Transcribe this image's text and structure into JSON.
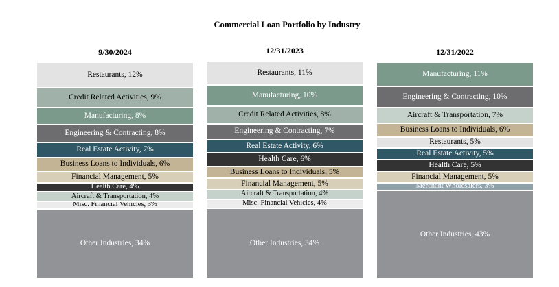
{
  "chart_data": {
    "type": "stacked-bar-100",
    "title": "Commercial Loan Portfolio by Industry",
    "bars": [
      {
        "label": "9/30/2024",
        "segments": [
          {
            "text": "Restaurants, 12%",
            "value": 12,
            "color": "#e3e3e3"
          },
          {
            "text": "Credit Related Activities, 9%",
            "value": 9,
            "color": "#9fb1a9"
          },
          {
            "text": "Manufacturing, 8%",
            "value": 8,
            "color": "#7b9a8b"
          },
          {
            "text": "Engineering & Contracting, 8%",
            "value": 8,
            "color": "#6d6d70"
          },
          {
            "text": "Real Estate Activity, 7%",
            "value": 7,
            "color": "#2f5766"
          },
          {
            "text": "Business Loans to Individuals, 6%",
            "value": 6,
            "color": "#c3b495"
          },
          {
            "text": "Financial Management, 5%",
            "value": 5,
            "color": "#d8cfb8"
          },
          {
            "text": "Health Care, 4%",
            "value": 4,
            "color": "#333333"
          },
          {
            "text": "Aircraft & Transportation, 4%",
            "value": 4,
            "color": "#c5d1cb"
          },
          {
            "text": "Misc. Financial Vehicles, 3%",
            "value": 3,
            "color": "#ececec"
          },
          {
            "text": "Other Industries, 34%",
            "value": 34,
            "color": "#929396"
          }
        ]
      },
      {
        "label": "12/31/2023",
        "segments": [
          {
            "text": "Restaurants, 11%",
            "value": 11,
            "color": "#e3e3e3"
          },
          {
            "text": "Manufacturing, 10%",
            "value": 10,
            "color": "#7b9a8b"
          },
          {
            "text": "Credit Related Activities, 8%",
            "value": 8,
            "color": "#9fb1a9"
          },
          {
            "text": "Engineering & Contracting, 7%",
            "value": 7,
            "color": "#6d6d70"
          },
          {
            "text": "Real Estate Activity, 6%",
            "value": 6,
            "color": "#2f5766"
          },
          {
            "text": "Health Care, 6%",
            "value": 6,
            "color": "#333333"
          },
          {
            "text": "Business Loans to Individuals, 5%",
            "value": 5,
            "color": "#c3b495"
          },
          {
            "text": "Financial Management, 5%",
            "value": 5,
            "color": "#d8cfb8"
          },
          {
            "text": "Aircraft & Transportation, 4%",
            "value": 4,
            "color": "#c5d1cb"
          },
          {
            "text": "Misc. Financial Vehicles, 4%",
            "value": 4,
            "color": "#ececec"
          },
          {
            "text": "Other Industries, 34%",
            "value": 34,
            "color": "#929396"
          }
        ]
      },
      {
        "label": "12/31/2022",
        "segments": [
          {
            "text": "Manufacturing, 11%",
            "value": 11,
            "color": "#7b9a8b"
          },
          {
            "text": "Engineering & Contracting, 10%",
            "value": 10,
            "color": "#6d6d70"
          },
          {
            "text": "Aircraft & Transportation, 7%",
            "value": 7,
            "color": "#c5d1cb"
          },
          {
            "text": "Business Loans to Individuals, 6%",
            "value": 6,
            "color": "#c3b495"
          },
          {
            "text": "Restaurants, 5%",
            "value": 5,
            "color": "#e3e3e3"
          },
          {
            "text": "Real Estate Activity, 5%",
            "value": 5,
            "color": "#2f5766"
          },
          {
            "text": "Health Care, 5%",
            "value": 5,
            "color": "#333333"
          },
          {
            "text": "Financial Management, 5%",
            "value": 5,
            "color": "#d8cfb8"
          },
          {
            "text": "Merchant Wholesalers, 3%",
            "value": 3,
            "color": "#8fa2aa"
          },
          {
            "text": "Other Industries, 43%",
            "value": 43,
            "color": "#929396"
          }
        ]
      }
    ]
  }
}
